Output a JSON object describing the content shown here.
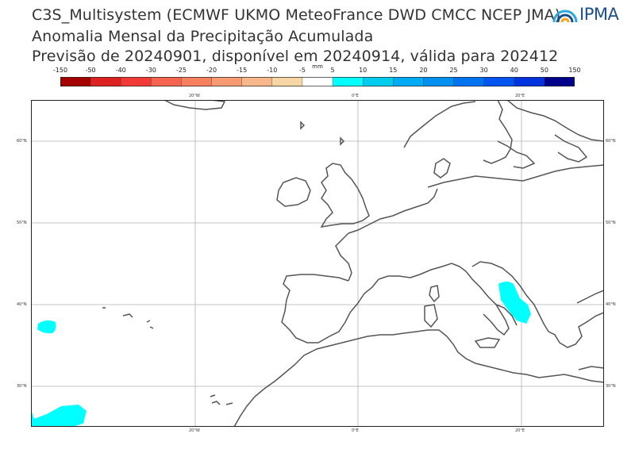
{
  "title": {
    "line1": "C3S_Multisystem  (ECMWF UKMO MeteoFrance DWD CMCC NCEP JMA)",
    "line2": "Anomalia Mensal da Precipitação Acumulada",
    "line3": "Previsão de 20240901, disponível em 20240914, válida para 202412"
  },
  "logo": {
    "text": "IPMA",
    "accent": "#1a4f8b"
  },
  "colorbar": {
    "unit": "mm",
    "levels": [
      "-150",
      "-50",
      "-40",
      "-30",
      "-25",
      "-20",
      "-15",
      "-10",
      "-5",
      "5",
      "10",
      "15",
      "20",
      "25",
      "30",
      "40",
      "50",
      "150"
    ],
    "colors": [
      "#a50000",
      "#dd2222",
      "#f23b36",
      "#f4644e",
      "#f7805e",
      "#f99a72",
      "#f9b88c",
      "#f6d6a2",
      "#ffffff",
      "#00ffff",
      "#00ccee",
      "#00aaf5",
      "#0090f0",
      "#0074f0",
      "#0055f0",
      "#0033dd",
      "#00008a"
    ]
  },
  "map": {
    "lon_ticks": [
      "20°W",
      "0°E",
      "20°E"
    ],
    "lat_ticks": [
      "60°N",
      "50°N",
      "40°N",
      "30°N"
    ],
    "anomaly_color": "#00ffff",
    "coast_color": "#555555",
    "grid_color": "#b0b0b0"
  }
}
